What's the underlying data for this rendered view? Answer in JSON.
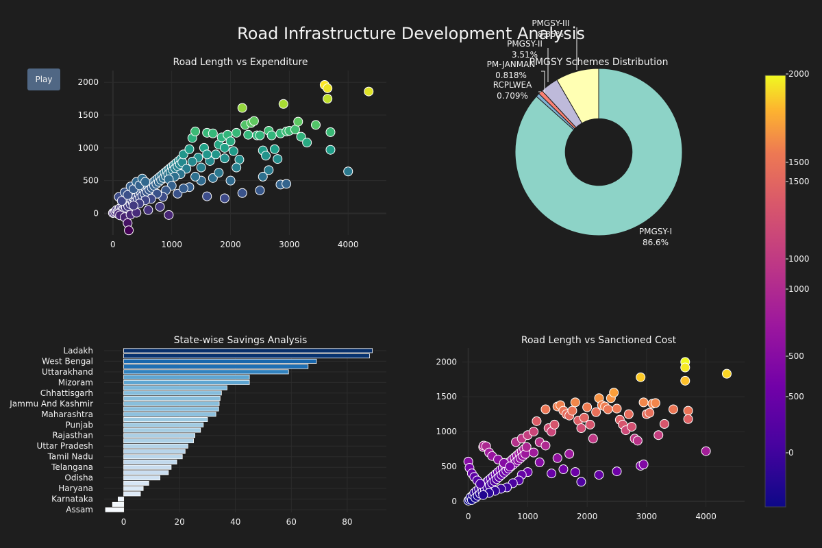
{
  "title": "Road Infrastructure Development Analysis",
  "controls": {
    "play_label": "Play"
  },
  "chart_data": [
    {
      "type": "scatter",
      "title": "Road Length vs Expenditure",
      "xlim": [
        -150,
        4650
      ],
      "ylim": [
        -330,
        2180
      ],
      "xticks": [
        0,
        1000,
        2000,
        3000,
        4000
      ],
      "yticks": [
        0,
        500,
        1000,
        1500,
        2000
      ],
      "marker_color": "value mapped to viridis",
      "points": [
        [
          0,
          5
        ],
        [
          20,
          10
        ],
        [
          40,
          25
        ],
        [
          60,
          50
        ],
        [
          80,
          30
        ],
        [
          100,
          60
        ],
        [
          120,
          80
        ],
        [
          140,
          40
        ],
        [
          160,
          100
        ],
        [
          180,
          70
        ],
        [
          200,
          120
        ],
        [
          220,
          90
        ],
        [
          240,
          150
        ],
        [
          260,
          110
        ],
        [
          280,
          180
        ],
        [
          300,
          140
        ],
        [
          320,
          200
        ],
        [
          340,
          160
        ],
        [
          360,
          230
        ],
        [
          380,
          190
        ],
        [
          400,
          260
        ],
        [
          420,
          210
        ],
        [
          440,
          290
        ],
        [
          460,
          240
        ],
        [
          480,
          320
        ],
        [
          500,
          270
        ],
        [
          520,
          350
        ],
        [
          540,
          300
        ],
        [
          560,
          380
        ],
        [
          580,
          330
        ],
        [
          600,
          410
        ],
        [
          620,
          360
        ],
        [
          640,
          440
        ],
        [
          660,
          390
        ],
        [
          680,
          470
        ],
        [
          700,
          420
        ],
        [
          720,
          500
        ],
        [
          740,
          450
        ],
        [
          760,
          530
        ],
        [
          780,
          480
        ],
        [
          800,
          560
        ],
        [
          820,
          510
        ],
        [
          840,
          590
        ],
        [
          860,
          540
        ],
        [
          880,
          620
        ],
        [
          900,
          570
        ],
        [
          920,
          650
        ],
        [
          940,
          600
        ],
        [
          960,
          680
        ],
        [
          980,
          630
        ],
        [
          1000,
          710
        ],
        [
          1020,
          660
        ],
        [
          1040,
          740
        ],
        [
          1060,
          690
        ],
        [
          1080,
          770
        ],
        [
          1100,
          720
        ],
        [
          1120,
          800
        ],
        [
          1140,
          750
        ],
        [
          1160,
          830
        ],
        [
          1180,
          780
        ],
        [
          100,
          250
        ],
        [
          150,
          190
        ],
        [
          200,
          320
        ],
        [
          250,
          280
        ],
        [
          300,
          410
        ],
        [
          350,
          370
        ],
        [
          400,
          480
        ],
        [
          450,
          430
        ],
        [
          500,
          530
        ],
        [
          550,
          480
        ],
        [
          90,
          -10
        ],
        [
          120,
          -30
        ],
        [
          200,
          -60
        ],
        [
          250,
          -150
        ],
        [
          270,
          -260
        ],
        [
          300,
          -20
        ],
        [
          400,
          10
        ],
        [
          600,
          50
        ],
        [
          800,
          100
        ],
        [
          950,
          -25
        ],
        [
          1200,
          900
        ],
        [
          1300,
          980
        ],
        [
          1350,
          1150
        ],
        [
          1400,
          1250
        ],
        [
          1450,
          850
        ],
        [
          1500,
          700
        ],
        [
          1550,
          1000
        ],
        [
          1600,
          1230
        ],
        [
          1650,
          800
        ],
        [
          1700,
          1220
        ],
        [
          1750,
          900
        ],
        [
          1800,
          1050
        ],
        [
          1850,
          1160
        ],
        [
          1900,
          1000
        ],
        [
          1950,
          1200
        ],
        [
          2000,
          1100
        ],
        [
          2050,
          950
        ],
        [
          2100,
          1230
        ],
        [
          2150,
          820
        ],
        [
          2200,
          1610
        ],
        [
          2250,
          1350
        ],
        [
          2300,
          1200
        ],
        [
          2350,
          1380
        ],
        [
          2400,
          1410
        ],
        [
          2450,
          1190
        ],
        [
          2500,
          1190
        ],
        [
          2550,
          960
        ],
        [
          2600,
          880
        ],
        [
          2650,
          1260
        ],
        [
          2700,
          1190
        ],
        [
          2750,
          980
        ],
        [
          2800,
          830
        ],
        [
          2850,
          1220
        ],
        [
          2900,
          1670
        ],
        [
          2950,
          1250
        ],
        [
          3000,
          1260
        ],
        [
          3100,
          1280
        ],
        [
          3150,
          1400
        ],
        [
          3200,
          1170
        ],
        [
          3300,
          1080
        ],
        [
          3450,
          1350
        ],
        [
          3600,
          1960
        ],
        [
          3650,
          1910
        ],
        [
          3650,
          1750
        ],
        [
          3700,
          1240
        ],
        [
          3700,
          970
        ],
        [
          4000,
          640
        ],
        [
          4350,
          1860
        ],
        [
          2200,
          310
        ],
        [
          2500,
          350
        ],
        [
          2550,
          560
        ],
        [
          2650,
          660
        ],
        [
          2850,
          440
        ],
        [
          2950,
          450
        ],
        [
          1900,
          230
        ],
        [
          1600,
          260
        ],
        [
          1300,
          400
        ],
        [
          1500,
          500
        ],
        [
          1700,
          540
        ],
        [
          2000,
          500
        ],
        [
          1400,
          560
        ],
        [
          1800,
          620
        ],
        [
          2100,
          700
        ],
        [
          1900,
          840
        ],
        [
          1600,
          900
        ],
        [
          1350,
          790
        ],
        [
          1250,
          680
        ],
        [
          1150,
          600
        ],
        [
          1050,
          560
        ],
        [
          950,
          520
        ],
        [
          1100,
          300
        ],
        [
          1200,
          380
        ],
        [
          1000,
          420
        ],
        [
          900,
          350
        ],
        [
          850,
          250
        ],
        [
          750,
          300
        ],
        [
          650,
          220
        ],
        [
          550,
          200
        ],
        [
          450,
          150
        ],
        [
          350,
          120
        ]
      ]
    },
    {
      "type": "pie",
      "title": "PMGSY Schemes Distribution",
      "hole": 0.4,
      "slices": [
        {
          "label": "PMGSY-I",
          "percent": "86.6%",
          "value": 86.6,
          "color": "#8dd3c7"
        },
        {
          "label": "RCPLWEA",
          "percent": "0.709%",
          "value": 0.709,
          "color": "#80b1d3"
        },
        {
          "label": "PM-JANMAN",
          "percent": "0.818%",
          "value": 0.818,
          "color": "#fb8072"
        },
        {
          "label": "PMGSY-II",
          "percent": "3.51%",
          "value": 3.51,
          "color": "#bebada"
        },
        {
          "label": "PMGSY-III",
          "percent": "8.35%",
          "value": 8.35,
          "color": "#ffffb3"
        }
      ]
    },
    {
      "type": "bar",
      "orientation": "horizontal",
      "title": "State-wise Savings Analysis",
      "xlim": [
        -7,
        94
      ],
      "xticks": [
        0,
        20,
        40,
        60,
        80
      ],
      "labeled_states": [
        "Ladakh",
        "West Bengal",
        "Uttarakhand",
        "Mizoram",
        "Chhattisgarh",
        "Jammu And Kashmir",
        "Maharashtra",
        "Punjab",
        "Rajasthan",
        "Uttar Pradesh",
        "Tamil Nadu",
        "Telangana",
        "Odisha",
        "Haryana",
        "Karnataka",
        "Assam"
      ],
      "values": [
        89,
        88,
        69,
        66,
        59,
        45,
        45,
        37,
        35,
        34.5,
        34.2,
        34,
        33,
        30,
        28.5,
        27.5,
        25.5,
        25,
        23,
        22,
        21,
        19,
        17,
        16,
        13,
        9,
        7,
        6,
        -2,
        -4,
        -6.5
      ],
      "colorscale": "Blues"
    },
    {
      "type": "scatter",
      "title": "Road Length vs Sanctioned Cost",
      "xlim": [
        -100,
        4650
      ],
      "ylim": [
        -80,
        2200
      ],
      "xticks": [
        0,
        1000,
        2000,
        3000,
        4000
      ],
      "yticks": [
        0,
        500,
        1000,
        1500,
        2000
      ],
      "marker_color": "value mapped to plasma",
      "points": [
        [
          0,
          10
        ],
        [
          20,
          30
        ],
        [
          40,
          60
        ],
        [
          60,
          20
        ],
        [
          80,
          90
        ],
        [
          100,
          120
        ],
        [
          120,
          50
        ],
        [
          140,
          150
        ],
        [
          160,
          80
        ],
        [
          180,
          180
        ],
        [
          200,
          110
        ],
        [
          220,
          210
        ],
        [
          240,
          140
        ],
        [
          260,
          240
        ],
        [
          280,
          170
        ],
        [
          300,
          270
        ],
        [
          320,
          200
        ],
        [
          340,
          300
        ],
        [
          360,
          230
        ],
        [
          380,
          330
        ],
        [
          400,
          260
        ],
        [
          420,
          360
        ],
        [
          440,
          290
        ],
        [
          460,
          390
        ],
        [
          480,
          320
        ],
        [
          500,
          420
        ],
        [
          520,
          350
        ],
        [
          540,
          450
        ],
        [
          560,
          380
        ],
        [
          580,
          480
        ],
        [
          600,
          410
        ],
        [
          620,
          510
        ],
        [
          640,
          440
        ],
        [
          660,
          540
        ],
        [
          680,
          470
        ],
        [
          700,
          570
        ],
        [
          720,
          500
        ],
        [
          740,
          600
        ],
        [
          760,
          530
        ],
        [
          780,
          630
        ],
        [
          800,
          560
        ],
        [
          820,
          660
        ],
        [
          840,
          590
        ],
        [
          860,
          690
        ],
        [
          880,
          620
        ],
        [
          900,
          720
        ],
        [
          920,
          650
        ],
        [
          940,
          750
        ],
        [
          960,
          680
        ],
        [
          980,
          780
        ],
        [
          0,
          570
        ],
        [
          20,
          480
        ],
        [
          60,
          400
        ],
        [
          100,
          350
        ],
        [
          150,
          300
        ],
        [
          200,
          250
        ],
        [
          250,
          780
        ],
        [
          260,
          800
        ],
        [
          300,
          790
        ],
        [
          350,
          700
        ],
        [
          400,
          650
        ],
        [
          500,
          600
        ],
        [
          600,
          550
        ],
        [
          700,
          500
        ],
        [
          800,
          850
        ],
        [
          900,
          900
        ],
        [
          1000,
          950
        ],
        [
          1100,
          1000
        ],
        [
          1150,
          1150
        ],
        [
          1200,
          850
        ],
        [
          1300,
          1320
        ],
        [
          1350,
          1050
        ],
        [
          1400,
          1000
        ],
        [
          1450,
          1100
        ],
        [
          1500,
          1360
        ],
        [
          1550,
          1380
        ],
        [
          1600,
          1300
        ],
        [
          1650,
          1250
        ],
        [
          1700,
          1230
        ],
        [
          1750,
          1300
        ],
        [
          1800,
          1420
        ],
        [
          1850,
          1160
        ],
        [
          1900,
          1050
        ],
        [
          1950,
          1200
        ],
        [
          2000,
          1350
        ],
        [
          2050,
          1100
        ],
        [
          2100,
          900
        ],
        [
          2150,
          1280
        ],
        [
          2200,
          1480
        ],
        [
          2250,
          1380
        ],
        [
          2300,
          1360
        ],
        [
          2350,
          1320
        ],
        [
          2400,
          1480
        ],
        [
          2450,
          1560
        ],
        [
          2500,
          1330
        ],
        [
          2550,
          1170
        ],
        [
          2600,
          1100
        ],
        [
          2650,
          1020
        ],
        [
          2700,
          1250
        ],
        [
          2750,
          1070
        ],
        [
          2800,
          900
        ],
        [
          2850,
          870
        ],
        [
          2900,
          1780
        ],
        [
          2950,
          1420
        ],
        [
          3000,
          1250
        ],
        [
          3050,
          1270
        ],
        [
          3100,
          1400
        ],
        [
          3150,
          1410
        ],
        [
          3200,
          950
        ],
        [
          3300,
          1110
        ],
        [
          3450,
          1320
        ],
        [
          3650,
          2000
        ],
        [
          3650,
          1920
        ],
        [
          3650,
          1730
        ],
        [
          3700,
          1300
        ],
        [
          3700,
          1180
        ],
        [
          4000,
          720
        ],
        [
          4350,
          1830
        ],
        [
          2200,
          380
        ],
        [
          2500,
          430
        ],
        [
          2900,
          510
        ],
        [
          2950,
          530
        ],
        [
          1800,
          420
        ],
        [
          1900,
          280
        ],
        [
          1600,
          460
        ],
        [
          1400,
          400
        ],
        [
          1200,
          560
        ],
        [
          1100,
          700
        ],
        [
          1500,
          620
        ],
        [
          1700,
          680
        ],
        [
          1300,
          800
        ],
        [
          1000,
          420
        ],
        [
          900,
          380
        ],
        [
          850,
          300
        ],
        [
          750,
          260
        ],
        [
          650,
          200
        ],
        [
          550,
          180
        ],
        [
          450,
          150
        ],
        [
          350,
          120
        ],
        [
          250,
          90
        ]
      ]
    }
  ],
  "colorbar": {
    "ticks": [
      "2000",
      "1500",
      "1500",
      "1000",
      "1000",
      "500",
      "500",
      "0"
    ]
  }
}
